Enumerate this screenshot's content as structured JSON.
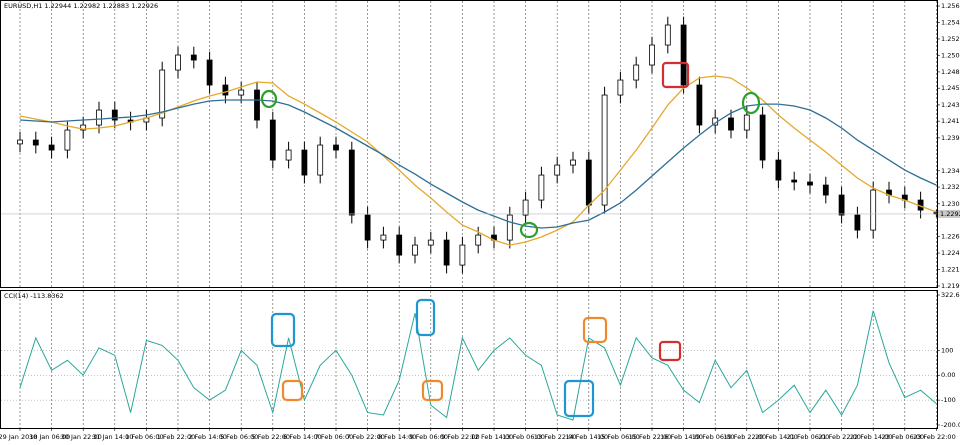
{
  "chart_data": [
    {
      "type": "candlestick",
      "title": "EURUSD,H1  1.22944 1.22982 1.22883 1.22926",
      "categories": [
        "29 Jan 2018",
        null,
        "30 Jan 06:00",
        null,
        "30 Jan 22:00",
        null,
        "31 Jan 14:00",
        null,
        "1 Feb 06:00",
        null,
        "1 Feb 22:00",
        null,
        "2 Feb 14:00",
        null,
        "5 Feb 06:00",
        null,
        "5 Feb 22:00",
        null,
        "6 Feb 14:00",
        null,
        "7 Feb 06:00",
        null,
        "7 Feb 22:00",
        null,
        "8 Feb 14:00",
        null,
        "9 Feb 06:00",
        null,
        "9 Feb 22:00",
        null,
        "12 Feb 14:00",
        null,
        "13 Feb 06:00",
        null,
        "13 Feb 22:00",
        null,
        "14 Feb 14:00",
        null,
        "15 Feb 06:00",
        null,
        "15 Feb 22:00",
        null,
        "16 Feb 14:00",
        null,
        "19 Feb 06:00",
        null,
        "19 Feb 22:00",
        null,
        "20 Feb 14:00",
        null,
        "21 Feb 06:00",
        null,
        "21 Feb 22:00",
        null,
        "22 Feb 14:00",
        null,
        "23 Feb 06:00",
        null,
        "23 Feb 22:00"
      ],
      "open": [
        1.2385,
        1.23901,
        1.23835,
        1.23769,
        1.24033,
        1.24099,
        1.24297,
        1.24165,
        1.24139,
        1.24192,
        1.24825,
        1.25023,
        1.24957,
        1.24627,
        1.24495,
        1.24561,
        1.24165,
        1.23637,
        1.23769,
        1.23439,
        1.23835,
        1.23769,
        1.22911,
        1.22581,
        1.22647,
        1.22383,
        1.22515,
        1.22581,
        1.22251,
        1.22515,
        1.22647,
        1.22581,
        1.22911,
        1.23109,
        1.23439,
        1.23571,
        1.23637,
        1.23043,
        1.24495,
        1.24693,
        1.24891,
        1.25155,
        1.25419,
        1.24627,
        1.24099,
        1.24192,
        1.24033,
        1.24231,
        1.23637,
        1.23373,
        1.23347,
        1.23307,
        1.23175,
        1.22911,
        1.22713,
        1.23241,
        1.23175,
        1.23109,
        1.22944
      ],
      "high": [
        1.24011,
        1.24011,
        1.23945,
        1.24143,
        1.24209,
        1.24407,
        1.24407,
        1.24275,
        1.24302,
        1.24935,
        1.25133,
        1.25133,
        1.25067,
        1.24737,
        1.24671,
        1.24671,
        1.24275,
        1.23879,
        1.23879,
        1.23945,
        1.23945,
        1.23879,
        1.23021,
        1.22757,
        1.22757,
        1.22625,
        1.22691,
        1.22691,
        1.22625,
        1.22757,
        1.22757,
        1.23021,
        1.23219,
        1.23549,
        1.23681,
        1.23747,
        1.23747,
        1.24605,
        1.24803,
        1.25001,
        1.25265,
        1.25529,
        1.25529,
        1.24737,
        1.24302,
        1.24302,
        1.24341,
        1.24341,
        1.23747,
        1.23483,
        1.23457,
        1.23417,
        1.23285,
        1.23021,
        1.23351,
        1.23351,
        1.23285,
        1.23219,
        1.22982
      ],
      "low": [
        1.2374,
        1.23725,
        1.23659,
        1.23659,
        1.23923,
        1.23989,
        1.24055,
        1.24029,
        1.24029,
        1.24082,
        1.24715,
        1.24847,
        1.24517,
        1.24385,
        1.24385,
        1.24055,
        1.23527,
        1.23527,
        1.23329,
        1.23329,
        1.23659,
        1.22801,
        1.22471,
        1.22471,
        1.22273,
        1.22273,
        1.22405,
        1.22141,
        1.22141,
        1.22405,
        1.22471,
        1.22471,
        1.22801,
        1.22999,
        1.23329,
        1.23461,
        1.22933,
        1.22933,
        1.24385,
        1.24583,
        1.24781,
        1.25045,
        1.24517,
        1.23989,
        1.23989,
        1.23923,
        1.23923,
        1.23527,
        1.23263,
        1.23237,
        1.23197,
        1.23065,
        1.22801,
        1.22603,
        1.22603,
        1.23065,
        1.22999,
        1.22867,
        1.22883
      ],
      "close": [
        1.23901,
        1.23835,
        1.23769,
        1.24033,
        1.24099,
        1.24297,
        1.24165,
        1.24139,
        1.24192,
        1.24825,
        1.25023,
        1.24957,
        1.24627,
        1.24495,
        1.24561,
        1.24165,
        1.23637,
        1.23769,
        1.23439,
        1.23835,
        1.23769,
        1.22911,
        1.22581,
        1.22647,
        1.22383,
        1.22515,
        1.22581,
        1.22251,
        1.22515,
        1.22647,
        1.22581,
        1.22911,
        1.23109,
        1.23439,
        1.23571,
        1.23637,
        1.23043,
        1.24495,
        1.24693,
        1.24891,
        1.25155,
        1.25419,
        1.24627,
        1.24099,
        1.24192,
        1.24033,
        1.24231,
        1.23637,
        1.23373,
        1.23347,
        1.23307,
        1.23175,
        1.22911,
        1.22713,
        1.23241,
        1.23175,
        1.23109,
        1.22977,
        1.22926
      ],
      "color": "#000000",
      "overlays": [
        {
          "color": "#e5a82a",
          "values": [
            1.24218,
            1.24178,
            1.24139,
            1.24086,
            1.24046,
            1.2406,
            1.24086,
            1.24139,
            1.24192,
            1.24258,
            1.24337,
            1.24416,
            1.24482,
            1.24535,
            1.24601,
            1.24667,
            1.24654,
            1.24482,
            1.24376,
            1.24258,
            1.24139,
            1.24007,
            1.23875,
            1.2369,
            1.23505,
            1.23307,
            1.23136,
            1.22951,
            1.22779,
            1.22687,
            1.22581,
            1.22515,
            1.22555,
            1.22621,
            1.22713,
            1.22819,
            1.23043,
            1.23241,
            1.23505,
            1.23769,
            1.2406,
            1.24363,
            1.24588,
            1.2472,
            1.24746,
            1.2472,
            1.24588,
            1.24429,
            1.24231,
            1.2406,
            1.23901,
            1.23743,
            1.23571,
            1.234,
            1.23268,
            1.23175,
            1.23109,
            1.2303,
            1.22951
          ]
        },
        {
          "color": "#2f6f96",
          "values": [
            1.24165,
            1.24152,
            1.24139,
            1.24152,
            1.24165,
            1.24178,
            1.24192,
            1.24205,
            1.24231,
            1.24271,
            1.24324,
            1.24376,
            1.24416,
            1.24429,
            1.24429,
            1.24429,
            1.24416,
            1.24363,
            1.24271,
            1.24165,
            1.2406,
            1.23941,
            1.23822,
            1.23703,
            1.23571,
            1.23452,
            1.2332,
            1.23202,
            1.23083,
            1.22977,
            1.22898,
            1.22819,
            1.22766,
            1.2274,
            1.22753,
            1.22806,
            1.22845,
            1.22951,
            1.2307,
            1.23241,
            1.23426,
            1.23611,
            1.23796,
            1.23967,
            1.24126,
            1.24258,
            1.2435,
            1.24376,
            1.24376,
            1.2435,
            1.24297,
            1.24192,
            1.2406,
            1.23901,
            1.23769,
            1.23637,
            1.23505,
            1.234,
            1.23307
          ]
        }
      ],
      "last_price": 1.22926,
      "ylim": [
        1.21975,
        1.2567
      ],
      "yticks": [
        {
          "value": 1.2567,
          "label": "1.25670"
        },
        1.25455,
        1.25235,
        {
          "value": 1.2502,
          "label": "1.25020"
        },
        {
          "value": 1.248,
          "label": "1.24800"
        },
        1.24585,
        1.24365,
        {
          "value": 1.2415,
          "label": "1.24150"
        },
        {
          "value": 1.2393,
          "label": "1.23930"
        },
        1.23495,
        {
          "value": 1.2328,
          "label": "1.23280"
        },
        {
          "value": 1.2306,
          "label": "1.23060"
        },
        {
          "value": 1.2263,
          "label": "1.22630"
        },
        {
          "value": 1.2241,
          "label": "1.22410"
        },
        1.22195,
        1.21975
      ],
      "grid": true
    },
    {
      "type": "line",
      "title": "CCI(14) -113.8362",
      "color": "#2aa79b",
      "values": [
        -50,
        150,
        20,
        60,
        0,
        110,
        80,
        -150,
        140,
        120,
        60,
        -50,
        -100,
        -60,
        100,
        40,
        -150,
        150,
        -100,
        40,
        100,
        0,
        -150,
        -160,
        -20,
        250,
        -120,
        -170,
        150,
        20,
        100,
        150,
        80,
        40,
        -160,
        -180,
        150,
        110,
        -40,
        150,
        70,
        40,
        -60,
        -110,
        60,
        -50,
        20,
        -150,
        -100,
        -40,
        -150,
        -60,
        -160,
        -40,
        260,
        50,
        -90,
        -60,
        -113.8362
      ],
      "ylim": [
        -200.031,
        322.6027
      ],
      "yticks": [
        322.6027,
        100,
        {
          "value": 0,
          "label": "0.00"
        },
        -100,
        -200.031
      ]
    }
  ]
}
